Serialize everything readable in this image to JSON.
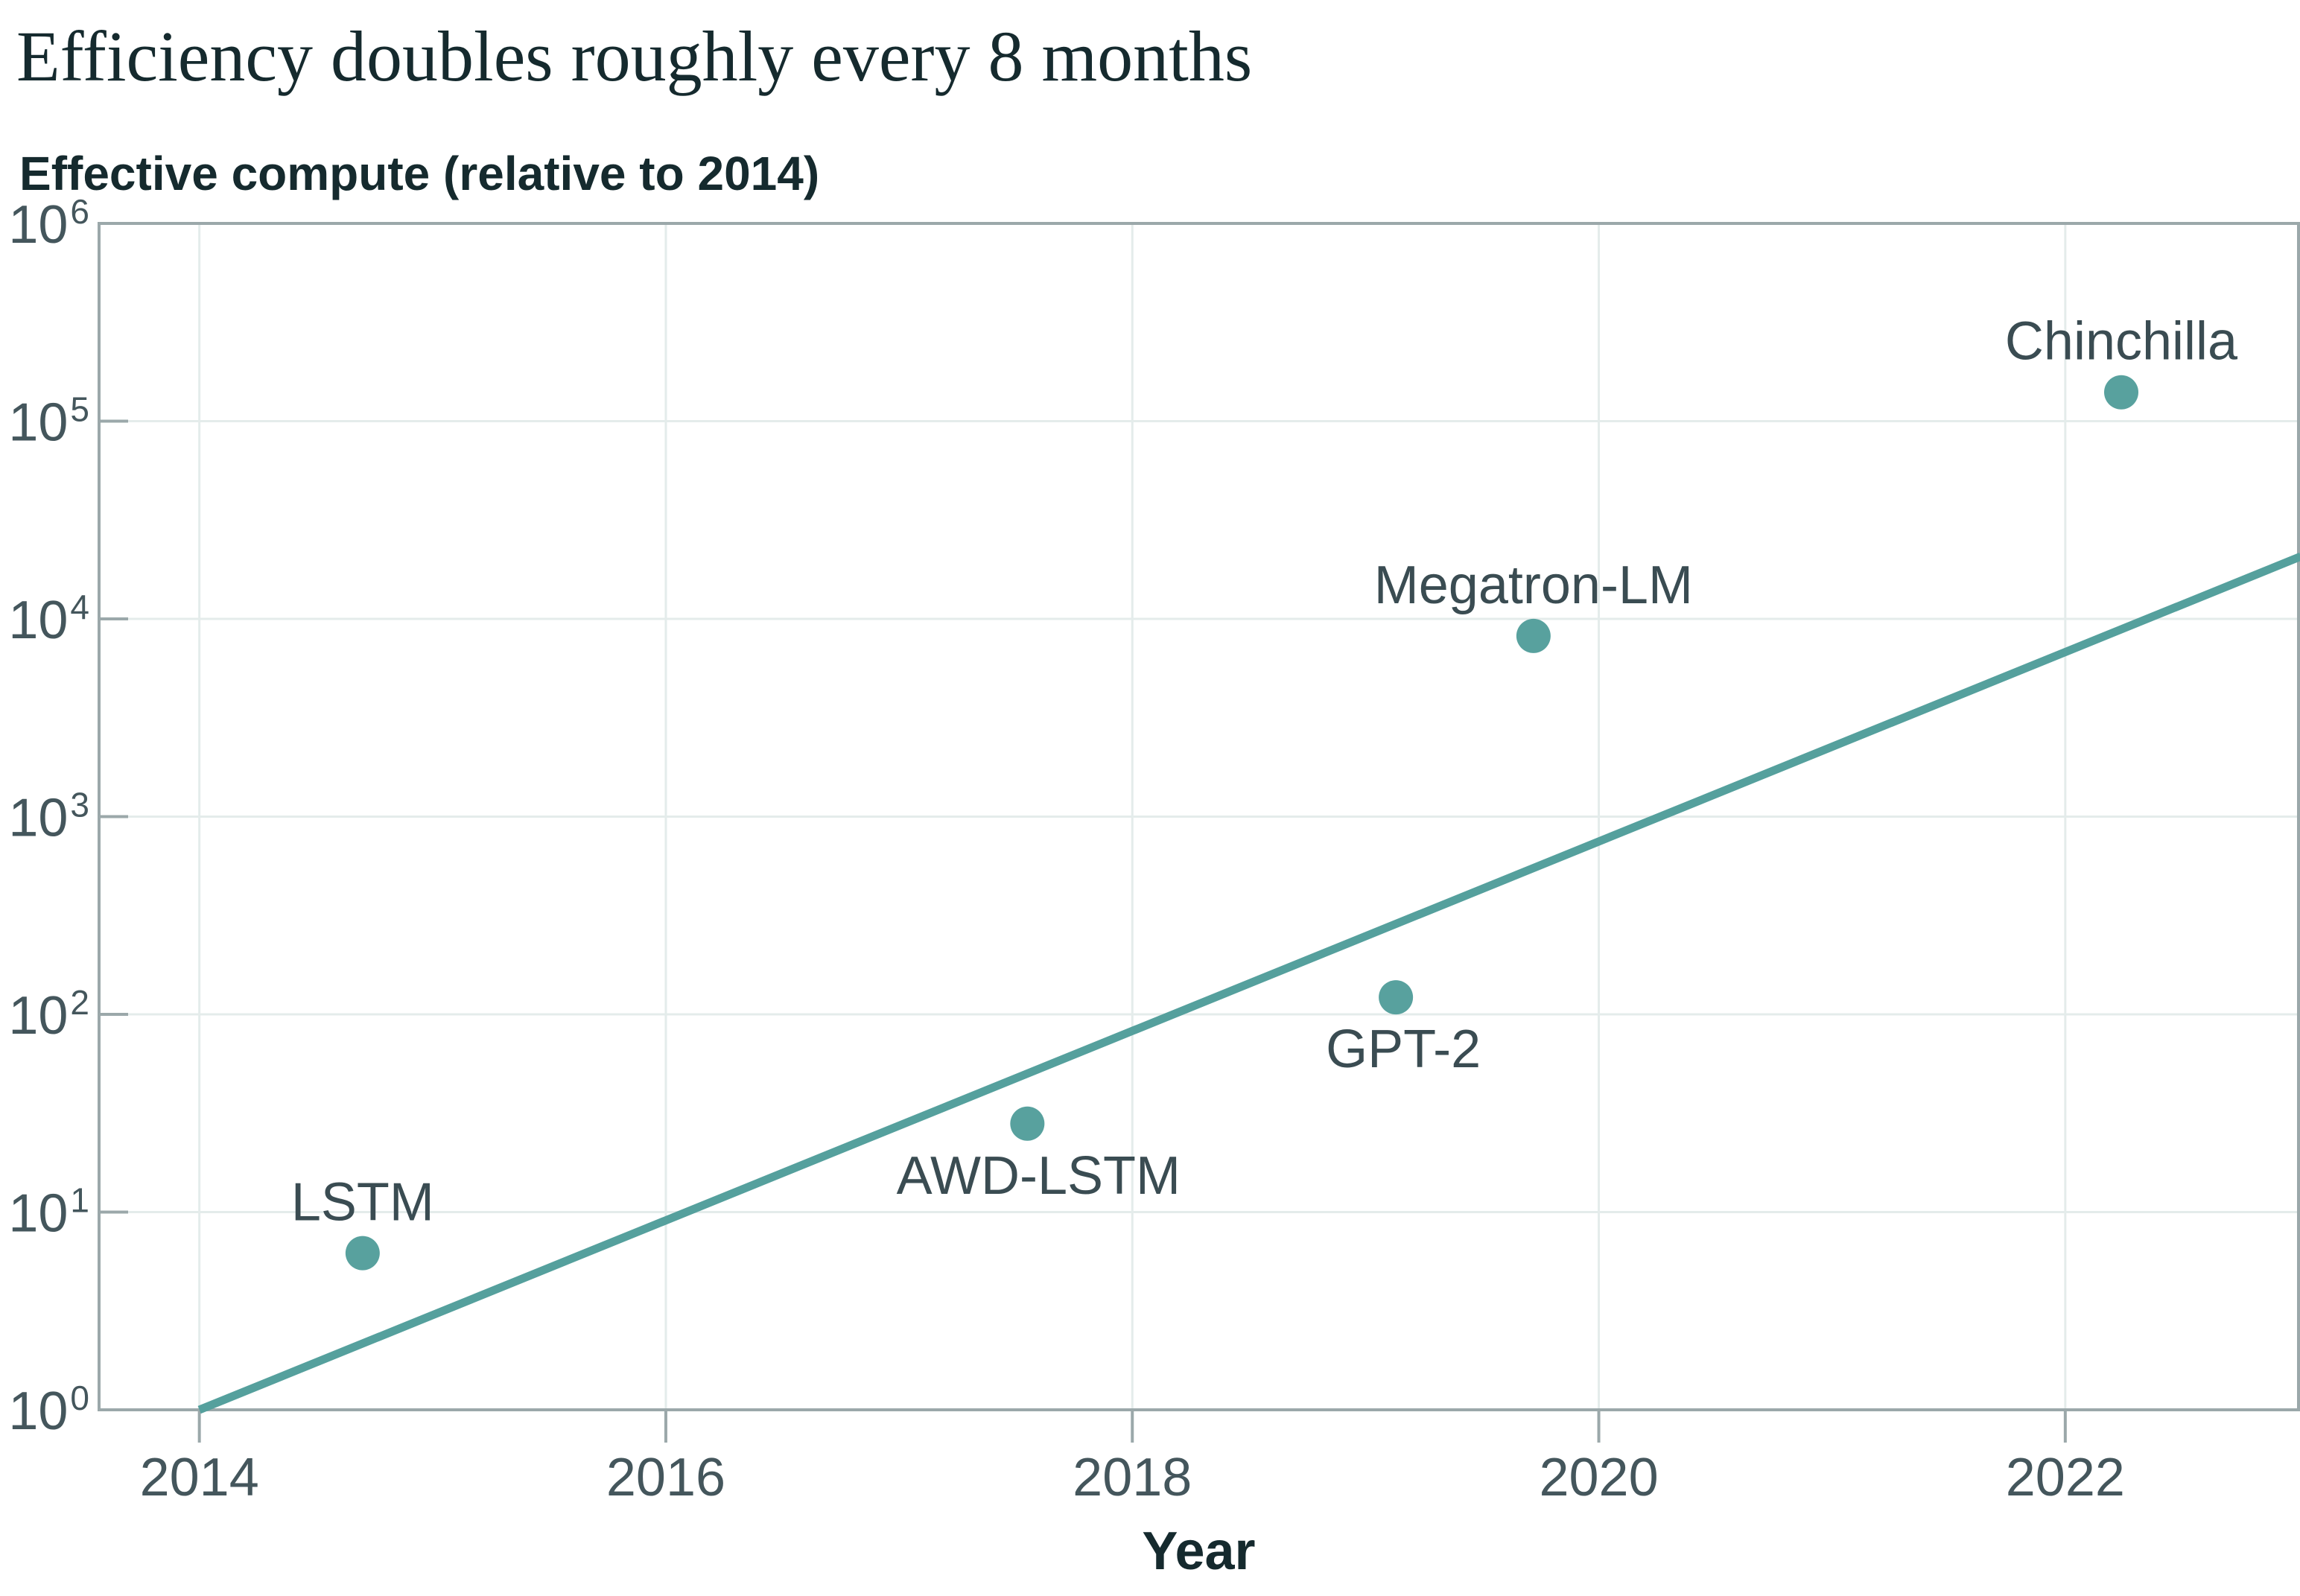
{
  "page": {
    "title": "Efficiency doubles roughly every 8 months",
    "subtitle": "Effective compute (relative to 2014)",
    "x_axis_title": "Year"
  },
  "colors": {
    "accent_teal": "#55a09d",
    "dot_teal": "#58a19e",
    "grid": "#e4eceb",
    "frame": "#9ba8aa",
    "tick": "#9ba8aa",
    "tick_label": "#44565c",
    "point_label": "#3a4c52",
    "title_text": "#152a2e",
    "background": "#ffffff"
  },
  "chart_data": {
    "type": "scatter",
    "title": "Efficiency doubles roughly every 8 months",
    "subtitle": "Effective compute (relative to 2014)",
    "xlabel": "Year",
    "ylabel": "Effective compute (relative to 2014)",
    "x_scale": "linear",
    "y_scale": "log10",
    "x_domain": [
      2013.57,
      2023.0
    ],
    "y_domain_log10": [
      0,
      6
    ],
    "ylim": [
      1,
      1000000
    ],
    "x_ticks": [
      2014,
      2016,
      2018,
      2020,
      2022
    ],
    "y_tick_exponents": [
      0,
      1,
      2,
      3,
      4,
      5,
      6
    ],
    "y_tick_base": "10",
    "grid": true,
    "legend": "none",
    "points": [
      {
        "label": "LSTM",
        "x": 2014.7,
        "y": 6.2,
        "label_position": "above",
        "label_dx": 0
      },
      {
        "label": "AWD-LSTM",
        "x": 2017.55,
        "y": 28,
        "label_position": "below",
        "label_dx": 15
      },
      {
        "label": "GPT-2",
        "x": 2019.13,
        "y": 122,
        "label_position": "below",
        "label_dx": 10
      },
      {
        "label": "Megatron-LM",
        "x": 2019.72,
        "y": 8200,
        "label_position": "above",
        "label_dx": 0
      },
      {
        "label": "Chinchilla",
        "x": 2022.24,
        "y": 140000,
        "label_position": "above",
        "label_dx": 0
      }
    ],
    "trend_line": {
      "x": [
        2014.0,
        2023.01
      ],
      "y": [
        1,
        20700
      ],
      "doubling_time_months": 8
    }
  }
}
